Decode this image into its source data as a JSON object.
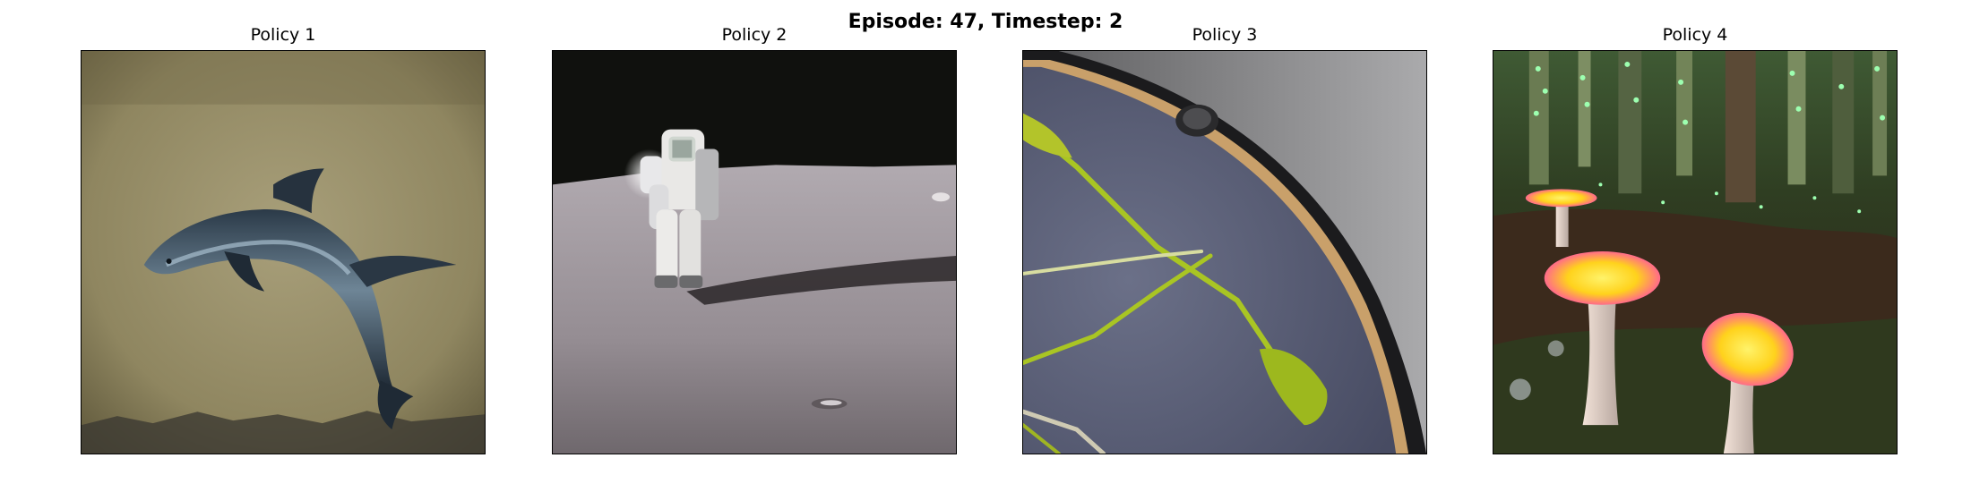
{
  "figure": {
    "title": "Episode: 47, Timestep: 2"
  },
  "panels": [
    {
      "title": "Policy 1"
    },
    {
      "title": "Policy 2"
    },
    {
      "title": "Policy 3"
    },
    {
      "title": "Policy 4"
    }
  ]
}
